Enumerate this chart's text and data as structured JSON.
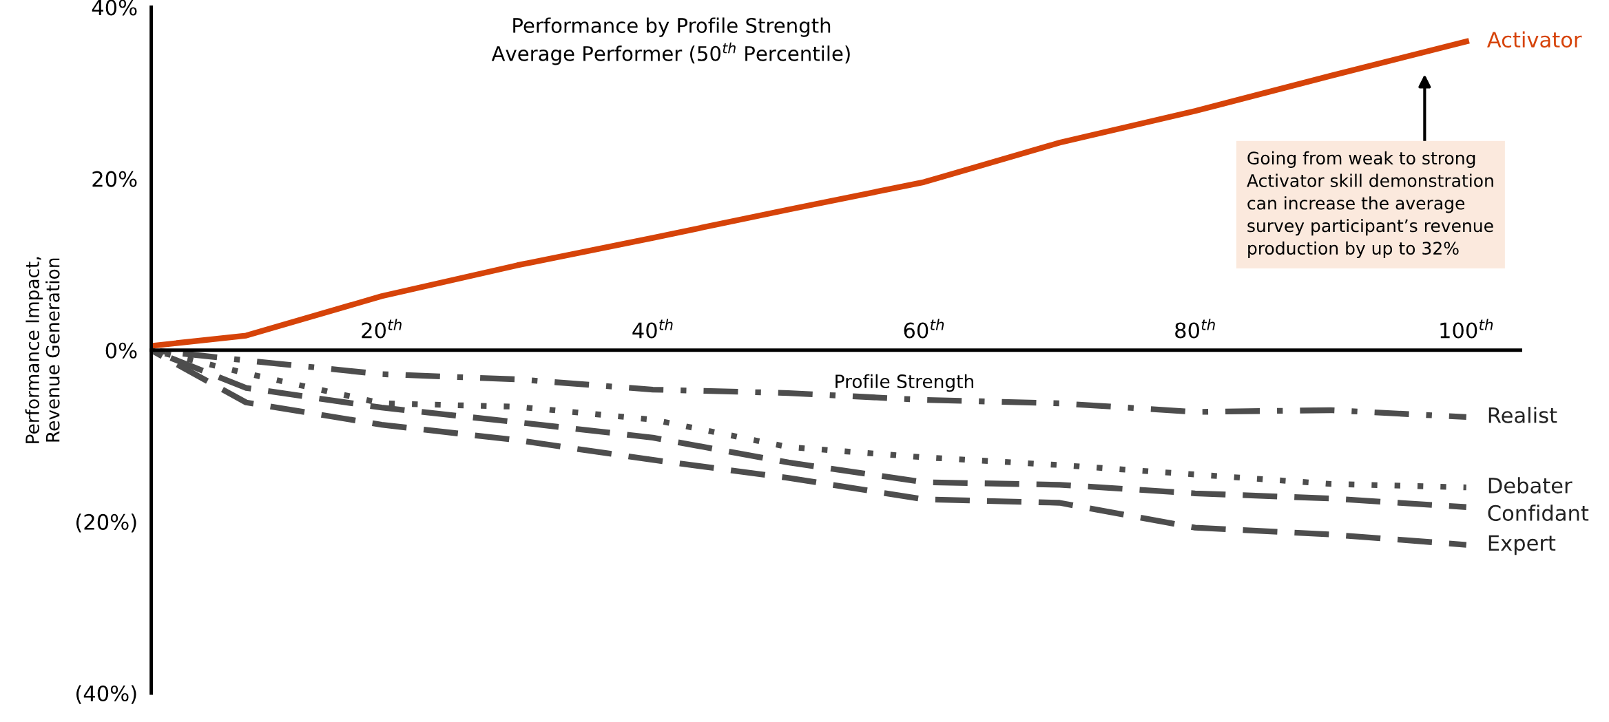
{
  "chart_data": {
    "type": "line",
    "title": "Performance by Profile Strength\nAverage Performer (50$^{th}$ Percentile)",
    "xlabel": "Profile Strength",
    "ylabel": "Performance Impact,\nRevenue Generation",
    "x": [
      3,
      10,
      20,
      30,
      40,
      50,
      60,
      70,
      80,
      90,
      100
    ],
    "xlim": [
      3,
      104
    ],
    "xticks": [
      {
        "value": 20,
        "label": "20$^{th}$"
      },
      {
        "value": 40,
        "label": "40$^{th}$"
      },
      {
        "value": 60,
        "label": "60$^{th}$"
      },
      {
        "value": 80,
        "label": "80$^{th}$"
      },
      {
        "value": 100,
        "label": "100$^{th}$"
      }
    ],
    "ylim": [
      -40,
      40
    ],
    "yticks": [
      {
        "value": 40,
        "label": "40%"
      },
      {
        "value": 20,
        "label": "20%"
      },
      {
        "value": 0,
        "label": "0%"
      },
      {
        "value": -20,
        "label": "(20%)"
      },
      {
        "value": -40,
        "label": "(40%)"
      }
    ],
    "grid": false,
    "legend": false,
    "series": [
      {
        "name": "Activator",
        "color": "#d64309",
        "line_style": "solid",
        "values": [
          0.5,
          1.7,
          6.3,
          9.9,
          13.1,
          16.4,
          19.6,
          24.2,
          27.9,
          32,
          36
        ]
      },
      {
        "name": "Realist",
        "color": "#4d4d4d",
        "line_style": "dashdot",
        "values": [
          0,
          -1.2,
          -2.8,
          -3.4,
          -4.6,
          -5.0,
          -5.8,
          -6.2,
          -7.2,
          -7.0,
          -7.8
        ]
      },
      {
        "name": "Debater",
        "color": "#4d4d4d",
        "line_style": "dotted",
        "values": [
          0,
          -2.7,
          -6.2,
          -6.6,
          -8.1,
          -11.3,
          -12.5,
          -13.4,
          -14.5,
          -15.6,
          -16.0
        ]
      },
      {
        "name": "Confidant",
        "color": "#4d4d4d",
        "line_style": "dashed",
        "values": [
          0,
          -4.4,
          -6.7,
          -8.4,
          -10.2,
          -13.1,
          -15.4,
          -15.7,
          -16.7,
          -17.3,
          -18.3
        ]
      },
      {
        "name": "Expert",
        "color": "#4d4d4d",
        "line_style": "dashed",
        "values": [
          0,
          -6.1,
          -8.7,
          -10.5,
          -12.8,
          -14.9,
          -17.4,
          -17.8,
          -20.7,
          -21.5,
          -22.7
        ]
      }
    ],
    "annotations": [
      "Going from weak to strong\nActivator skill demonstration\ncan increase the average\nsurvey participant’s revenue\nproduction by up to 32%"
    ]
  }
}
